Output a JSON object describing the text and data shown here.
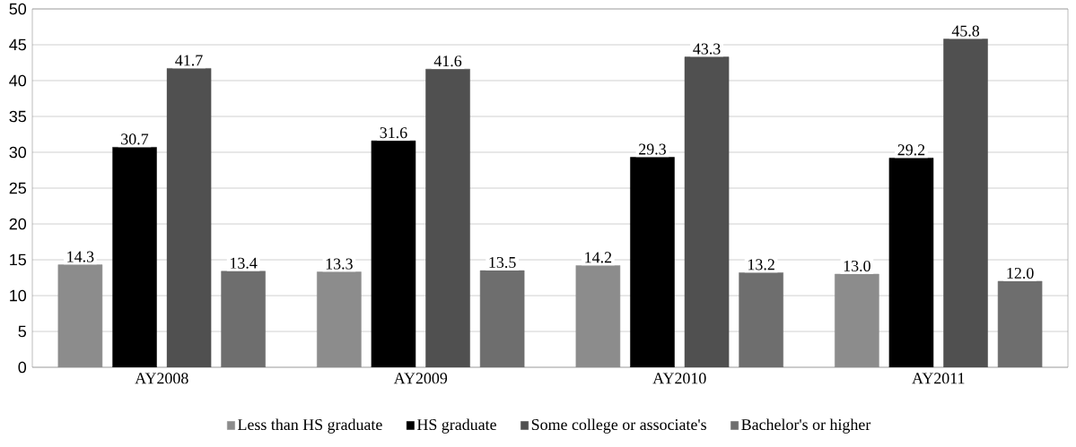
{
  "chart_data": {
    "type": "bar",
    "categories": [
      "AY2008",
      "AY2009",
      "AY2010",
      "AY2011"
    ],
    "series": [
      {
        "name": "Less than HS graduate",
        "color": "#8c8c8c",
        "values": [
          14.3,
          13.3,
          14.2,
          13.0
        ],
        "value_labels": [
          "14.3",
          "13.3",
          "14.2",
          "13.0"
        ]
      },
      {
        "name": "HS graduate",
        "color": "#000000",
        "values": [
          30.7,
          31.6,
          29.3,
          29.2
        ],
        "value_labels": [
          "30.7",
          "31.6",
          "29.3",
          "29.2"
        ]
      },
      {
        "name": "Some college or associate's",
        "color": "#505050",
        "values": [
          41.7,
          41.6,
          43.3,
          45.8
        ],
        "value_labels": [
          "41.7",
          "41.6",
          "43.3",
          "45.8"
        ]
      },
      {
        "name": "Bachelor's or higher",
        "color": "#6e6e6e",
        "values": [
          13.4,
          13.5,
          13.2,
          12.0
        ],
        "value_labels": [
          "13.4",
          "13.5",
          "13.2",
          "12.0"
        ]
      }
    ],
    "ylim": [
      0,
      50
    ],
    "yticks": [
      0,
      5,
      10,
      15,
      20,
      25,
      30,
      35,
      40,
      45,
      50
    ],
    "grid": "y",
    "legend": "bottom"
  }
}
